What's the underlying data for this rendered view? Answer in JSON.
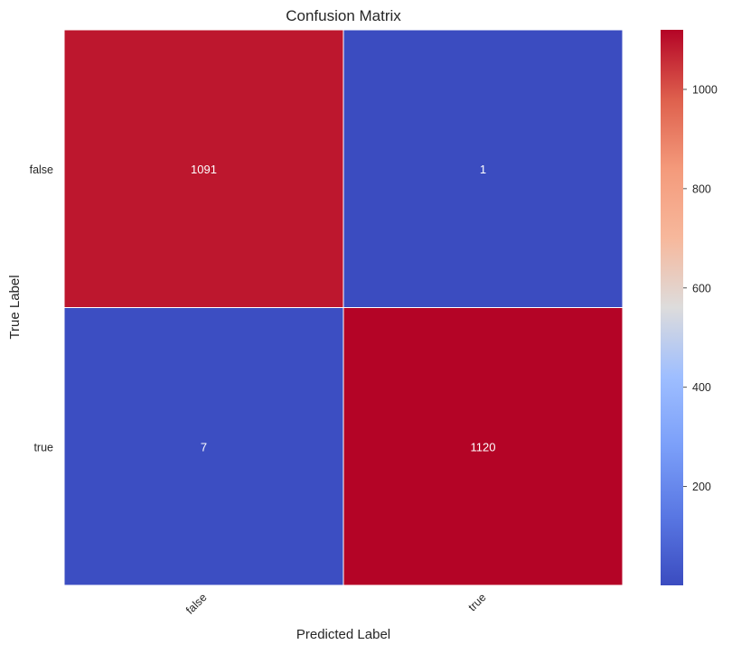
{
  "chart_data": {
    "type": "heatmap",
    "title": "Confusion Matrix",
    "xlabel": "Predicted Label",
    "ylabel": "True Label",
    "x_categories": [
      "false",
      "true"
    ],
    "y_categories": [
      "false",
      "true"
    ],
    "values": [
      [
        1091,
        1
      ],
      [
        7,
        1120
      ]
    ],
    "colormap": "coolwarm",
    "color_range": [
      1,
      1120
    ],
    "colorbar_ticks": [
      200,
      400,
      600,
      800,
      1000
    ],
    "grid": false,
    "legend": "colorbar-right"
  }
}
